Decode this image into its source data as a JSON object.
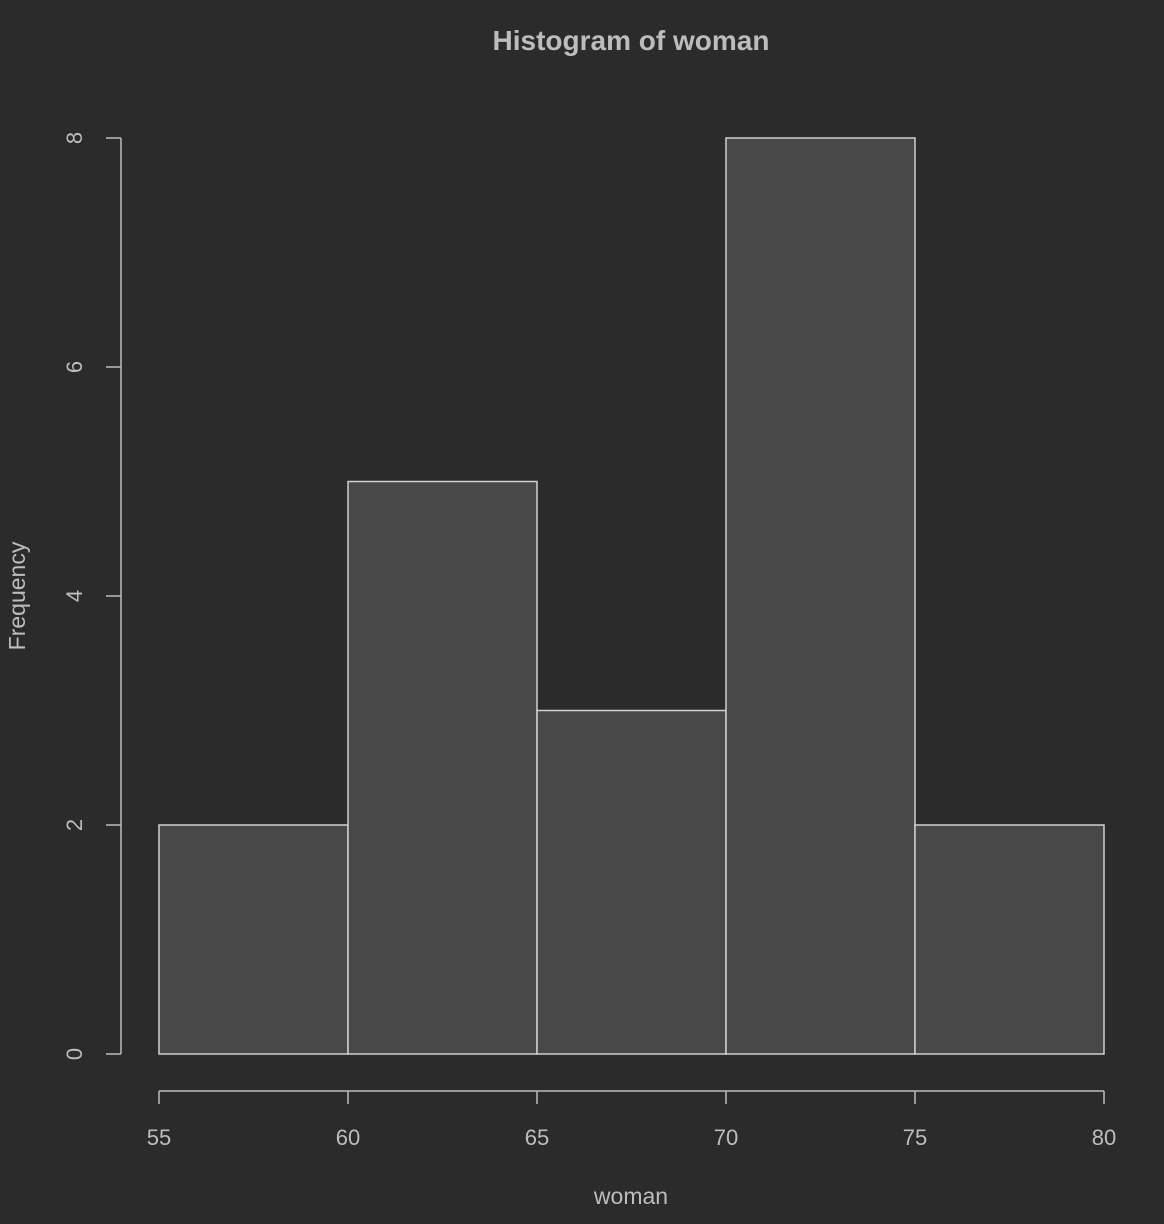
{
  "chart_data": {
    "type": "bar",
    "title": "Histogram of woman",
    "xlabel": "woman",
    "ylabel": "Frequency",
    "bins": [
      {
        "from": 55,
        "to": 60,
        "count": 2
      },
      {
        "from": 60,
        "to": 65,
        "count": 5
      },
      {
        "from": 65,
        "to": 70,
        "count": 3
      },
      {
        "from": 70,
        "to": 75,
        "count": 8
      },
      {
        "from": 75,
        "to": 80,
        "count": 2
      }
    ],
    "xlim": [
      55,
      80
    ],
    "ylim": [
      0,
      8
    ],
    "x_ticks": [
      "55",
      "60",
      "65",
      "70",
      "75",
      "80"
    ],
    "y_ticks": [
      "0",
      "2",
      "4",
      "6",
      "8"
    ],
    "grid": false,
    "colors": {
      "background": "#2b2b2b",
      "bar_fill": "#484848",
      "bar_border": "#d0d0d0",
      "text": "#bdbdbd"
    }
  }
}
